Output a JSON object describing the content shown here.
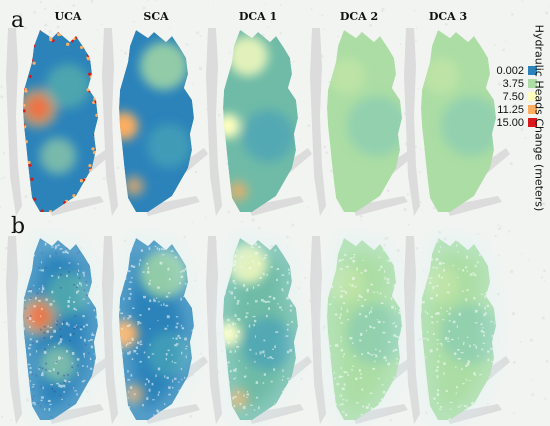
{
  "figure": {
    "rows": [
      {
        "id": "a",
        "label": "a"
      },
      {
        "id": "b",
        "label": "b"
      }
    ],
    "columns": [
      {
        "id": "uca",
        "label": "UCA",
        "style": "hotspot"
      },
      {
        "id": "sca",
        "label": "SCA",
        "style": "smooth-high"
      },
      {
        "id": "dca1",
        "label": "DCA 1",
        "style": "smooth-mid"
      },
      {
        "id": "dca2",
        "label": "DCA 2",
        "style": "smooth-low"
      },
      {
        "id": "dca3",
        "label": "DCA 3",
        "style": "smooth-low"
      }
    ]
  },
  "legend": {
    "title": "Hydraulic Heads Change (meters)",
    "entries": [
      {
        "value": "0.002",
        "color": "#2b83ba"
      },
      {
        "value": "3.75",
        "color": "#abdda4"
      },
      {
        "value": "7.50",
        "color": "#ffffbf"
      },
      {
        "value": "11.25",
        "color": "#fdae61"
      },
      {
        "value": "15.00",
        "color": "#d7191c"
      }
    ]
  },
  "colors": {
    "background": "#f2f4f1",
    "land_gray": "#dcdcdc",
    "glow": "#d6f3f6"
  }
}
